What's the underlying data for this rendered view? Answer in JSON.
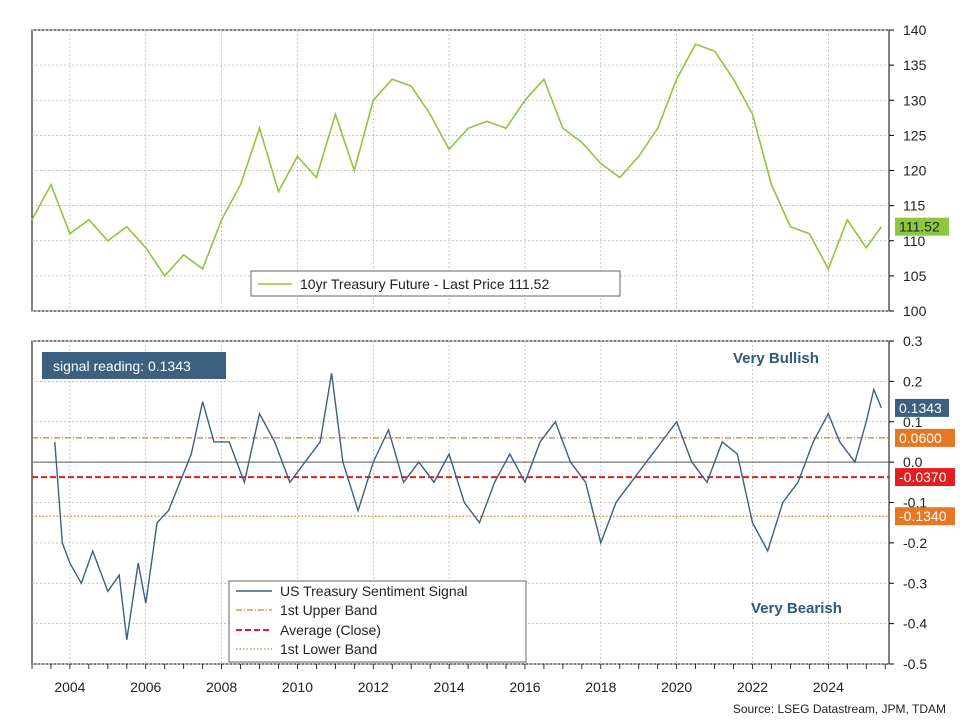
{
  "source": "Source: LSEG Datastream, JPM, TDAM",
  "colors": {
    "price": "#8dc63f",
    "signal": "#3b6080",
    "upper_band": "#e87722",
    "average": "#e41e1e",
    "lower_band": "#e87722",
    "grid": "#b0b0b0",
    "label_text": "#2f5a78"
  },
  "chart_data": [
    {
      "type": "line",
      "name": "top-panel",
      "xlim": [
        2003.0,
        2025.6
      ],
      "ylim": [
        100,
        140
      ],
      "y_ticks": [
        100,
        105,
        110,
        115,
        120,
        125,
        130,
        135,
        140
      ],
      "x_ticks": [
        2004,
        2006,
        2008,
        2010,
        2012,
        2014,
        2016,
        2018,
        2020,
        2022,
        2024
      ],
      "grid": true,
      "legend_position": "bottom-center",
      "last_value_badge": "111.52",
      "series": [
        {
          "name": "10yr Treasury Future - Last Price 111.52",
          "x": [
            2003.0,
            2003.5,
            2004.0,
            2004.5,
            2005.0,
            2005.5,
            2006.0,
            2006.5,
            2007.0,
            2007.5,
            2008.0,
            2008.5,
            2009.0,
            2009.5,
            2010.0,
            2010.5,
            2011.0,
            2011.5,
            2012.0,
            2012.5,
            2013.0,
            2013.5,
            2014.0,
            2014.5,
            2015.0,
            2015.5,
            2016.0,
            2016.5,
            2017.0,
            2017.5,
            2018.0,
            2018.5,
            2019.0,
            2019.5,
            2020.0,
            2020.5,
            2021.0,
            2021.5,
            2022.0,
            2022.5,
            2023.0,
            2023.5,
            2024.0,
            2024.5,
            2025.0,
            2025.4
          ],
          "values": [
            113,
            118,
            111,
            113,
            110,
            112,
            109,
            105,
            108,
            106,
            113,
            118,
            126,
            117,
            122,
            119,
            128,
            120,
            130,
            133,
            132,
            128,
            123,
            126,
            127,
            126,
            130,
            133,
            126,
            124,
            121,
            119,
            122,
            126,
            133,
            138,
            137,
            133,
            128,
            118,
            112,
            111,
            106,
            113,
            109,
            112
          ]
        }
      ]
    },
    {
      "type": "line",
      "name": "bottom-panel",
      "xlim": [
        2003.0,
        2025.6
      ],
      "ylim": [
        -0.5,
        0.3
      ],
      "y_ticks": [
        -0.5,
        -0.4,
        -0.3,
        -0.2,
        -0.1,
        0.0,
        0.1,
        0.2,
        0.3
      ],
      "y_tick_labels": [
        "-0.5",
        "-0.4",
        "-0.3",
        "-0.2",
        "-0.1",
        "0.0",
        "0.1",
        "0.2",
        "0.3"
      ],
      "x_ticks": [
        2004,
        2006,
        2008,
        2010,
        2012,
        2014,
        2016,
        2018,
        2020,
        2022,
        2024
      ],
      "grid": true,
      "legend_position": "bottom-center",
      "annotations": {
        "signal_reading": "signal reading: 0.1343",
        "very_bullish": "Very Bullish",
        "very_bearish": "Very Bearish"
      },
      "series": [
        {
          "name": "US Treasury Sentiment Signal",
          "badge": "0.1343",
          "x": [
            2003.6,
            2003.8,
            2004.0,
            2004.3,
            2004.6,
            2005.0,
            2005.3,
            2005.5,
            2005.8,
            2006.0,
            2006.3,
            2006.6,
            2006.9,
            2007.2,
            2007.5,
            2007.8,
            2008.2,
            2008.6,
            2009.0,
            2009.4,
            2009.8,
            2010.2,
            2010.6,
            2010.9,
            2011.2,
            2011.6,
            2012.0,
            2012.4,
            2012.8,
            2013.2,
            2013.6,
            2014.0,
            2014.4,
            2014.8,
            2015.2,
            2015.6,
            2016.0,
            2016.4,
            2016.8,
            2017.2,
            2017.6,
            2018.0,
            2018.4,
            2018.8,
            2019.2,
            2019.6,
            2020.0,
            2020.4,
            2020.8,
            2021.2,
            2021.6,
            2022.0,
            2022.4,
            2022.8,
            2023.2,
            2023.6,
            2024.0,
            2024.3,
            2024.7,
            2025.0,
            2025.2,
            2025.4
          ],
          "values": [
            0.05,
            -0.2,
            -0.25,
            -0.3,
            -0.22,
            -0.32,
            -0.28,
            -0.44,
            -0.25,
            -0.35,
            -0.15,
            -0.12,
            -0.05,
            0.02,
            0.15,
            0.05,
            0.05,
            -0.05,
            0.12,
            0.05,
            -0.05,
            0.0,
            0.05,
            0.22,
            0.0,
            -0.12,
            0.0,
            0.08,
            -0.05,
            0.0,
            -0.05,
            0.02,
            -0.1,
            -0.15,
            -0.05,
            0.02,
            -0.05,
            0.05,
            0.1,
            0.0,
            -0.05,
            -0.2,
            -0.1,
            -0.05,
            0.0,
            0.05,
            0.1,
            0.0,
            -0.05,
            0.05,
            0.02,
            -0.15,
            -0.22,
            -0.1,
            -0.05,
            0.05,
            0.12,
            0.05,
            0.0,
            0.1,
            0.18,
            0.1343
          ]
        },
        {
          "name": "1st Upper Band",
          "value": 0.06,
          "badge": "0.0600"
        },
        {
          "name": "Average (Close)",
          "value": -0.037,
          "badge": "-0.0370"
        },
        {
          "name": "1st Lower Band",
          "value": -0.134,
          "badge": "-0.1340"
        }
      ]
    }
  ]
}
